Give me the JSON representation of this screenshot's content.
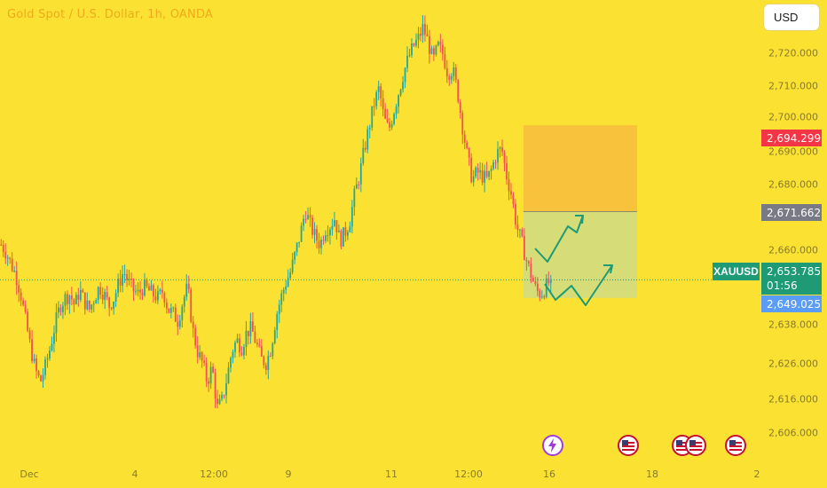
{
  "header": {
    "title": "Gold Spot / U.S. Dollar, 1h, OANDA",
    "currency_button": "USD"
  },
  "symbol": "XAUUSD",
  "price_scale": {
    "labels": [
      "2,720.000",
      "2,710.000",
      "2,700.000",
      "2,690.000",
      "2,680.000",
      "2,660.000",
      "2,638.000",
      "2,626.000",
      "2,616.000",
      "2,606.000"
    ],
    "markers": {
      "stop_loss": "2,694.299",
      "entry": "2,671.662",
      "current": "2,653.785",
      "countdown": "01:56",
      "take_profit": "2,649.025"
    }
  },
  "time_scale": {
    "labels": [
      "Dec",
      "4",
      "12:00",
      "9",
      "11",
      "12:00",
      "16",
      "18",
      "2"
    ]
  },
  "colors": {
    "background": "#fbe232",
    "bull_candle": "#26a69a",
    "bear_candle": "#ef5350",
    "stop_zone": "#f9c23c",
    "profit_zone": "#d6dc78",
    "arrow": "#1e9a74",
    "stop_tag": "#f23645",
    "entry_tag": "#787b86",
    "current_tag": "#1e9a74",
    "target_tag": "#5b9cf6"
  },
  "events": [
    "lightning-icon",
    "us-flag-icon",
    "us-flag-icon",
    "us-flag-icon",
    "us-flag-icon"
  ],
  "chart_data": {
    "type": "candlestick",
    "title": "Gold Spot / U.S. Dollar, 1h, OANDA",
    "x_tick_labels": [
      "Dec",
      "4",
      "12:00",
      "9",
      "11",
      "12:00",
      "16",
      "18",
      "2"
    ],
    "y_tick_labels": [
      2720,
      2710,
      2700,
      2690,
      2680,
      2660,
      2638,
      2626,
      2616,
      2606
    ],
    "ylim": [
      2602,
      2726
    ],
    "close_path": [
      2663,
      2661,
      2658,
      2655,
      2650,
      2643,
      2636,
      2630,
      2627,
      2631,
      2636,
      2642,
      2647,
      2649,
      2650,
      2647,
      2651,
      2648,
      2646,
      2649,
      2652,
      2650,
      2647,
      2649,
      2653,
      2656,
      2653,
      2651,
      2650,
      2652,
      2651,
      2650,
      2649,
      2651,
      2646,
      2645,
      2643,
      2648,
      2652,
      2641,
      2635,
      2632,
      2627,
      2631,
      2620,
      2622,
      2628,
      2635,
      2638,
      2636,
      2640,
      2641,
      2637,
      2633,
      2632,
      2636,
      2644,
      2649,
      2653,
      2656,
      2661,
      2666,
      2672,
      2668,
      2665,
      2663,
      2667,
      2668,
      2670,
      2664,
      2666,
      2669,
      2676,
      2681,
      2688,
      2694,
      2700,
      2704,
      2696,
      2693,
      2698,
      2703,
      2708,
      2712,
      2715,
      2717,
      2720,
      2716,
      2711,
      2715,
      2713,
      2708,
      2709,
      2703,
      2694,
      2686,
      2680,
      2682,
      2681,
      2680,
      2683,
      2687,
      2688,
      2681,
      2676,
      2668,
      2664,
      2659,
      2655,
      2651,
      2650,
      2652,
      2653.8
    ],
    "position": {
      "entry": 2671.662,
      "stop_loss": 2694.299,
      "take_profit": 2649.025,
      "current": 2653.785,
      "countdown": "01:56"
    }
  }
}
